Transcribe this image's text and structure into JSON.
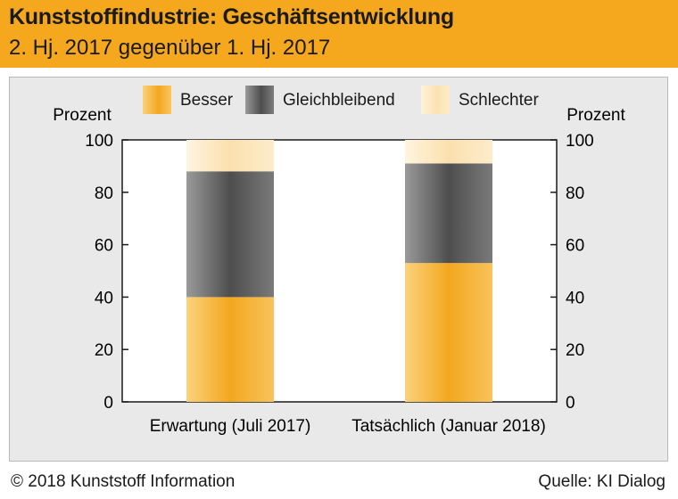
{
  "header": {
    "title": "Kunststoffindustrie: Geschäftsentwicklung",
    "subtitle": "2. Hj. 2017 gegenüber 1. Hj. 2017"
  },
  "footer": {
    "copyright": "© 2018 Kunststoff Information",
    "source": "Quelle: KI Dialog"
  },
  "colors": {
    "accent": "#f5a81e",
    "besser": "#f6b43c",
    "gleichbleibend": "#5e5e5e",
    "schlechter": "#fde6bd",
    "panel": "#e9e9e9"
  },
  "chart_data": {
    "type": "bar",
    "stacked": true,
    "title": "Kunststoffindustrie: Geschäftsentwicklung",
    "subtitle": "2. Hj. 2017 gegenüber 1. Hj. 2017",
    "ylabel_left": "Prozent",
    "ylabel_right": "Prozent",
    "ylim": [
      0,
      100
    ],
    "yticks": [
      0,
      20,
      40,
      60,
      80,
      100
    ],
    "categories": [
      "Erwartung (Juli 2017)",
      "Tatsächlich (Januar 2018)"
    ],
    "series": [
      {
        "name": "Besser",
        "values": [
          40,
          53
        ],
        "color": "#f6b43c"
      },
      {
        "name": "Gleichbleibend",
        "values": [
          48,
          38
        ],
        "color": "#5e5e5e"
      },
      {
        "name": "Schlechter",
        "values": [
          12,
          9
        ],
        "color": "#fde6bd"
      }
    ],
    "legend": "top-center",
    "grid": false
  }
}
